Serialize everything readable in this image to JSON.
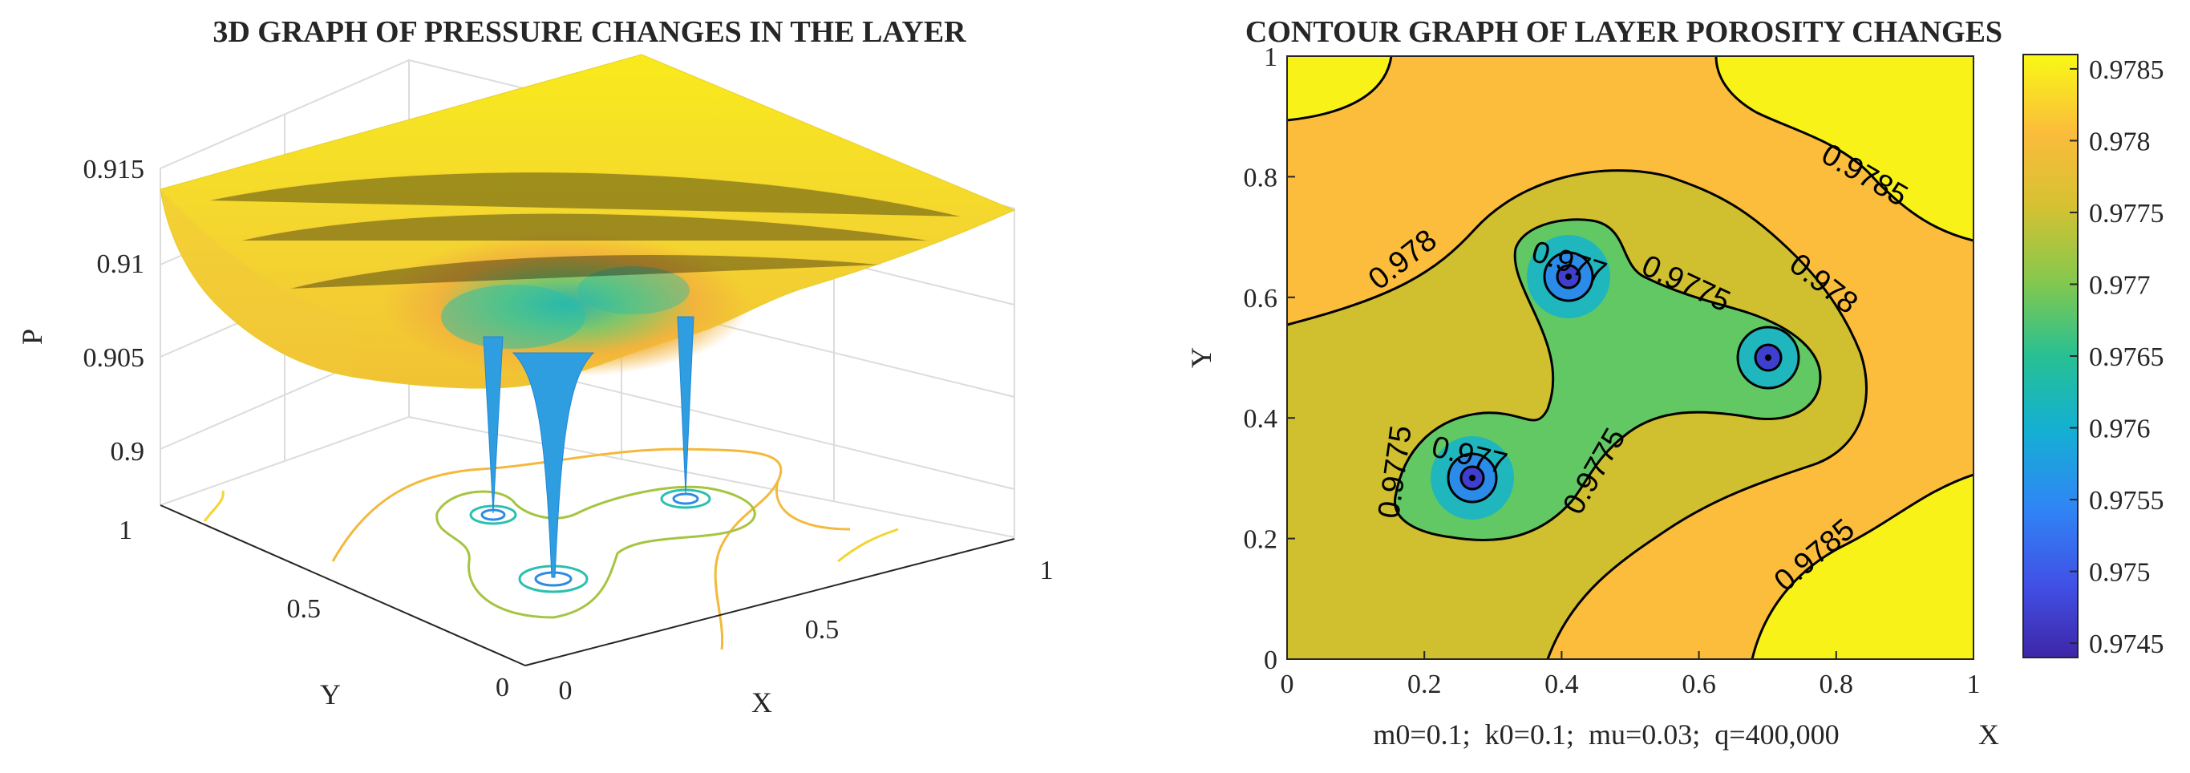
{
  "chart_data": [
    {
      "type": "surface",
      "title": "3D GRAPH OF PRESSURE CHANGES IN THE LAYER",
      "zlabel": "P",
      "xlabel": "X",
      "ylabel": "Y",
      "zticks": [
        "0.915",
        "0.91",
        "0.905",
        "0.9"
      ],
      "xticks": [
        "0",
        "0.5",
        "1"
      ],
      "yticks": [
        "1",
        "0.5",
        "0"
      ],
      "xlim": [
        0,
        1
      ],
      "ylim": [
        0,
        1
      ],
      "zlim": [
        0.9,
        0.915
      ],
      "wells": [
        {
          "x": 0.27,
          "y": 0.3
        },
        {
          "x": 0.41,
          "y": 0.63
        },
        {
          "x": 0.7,
          "y": 0.5
        }
      ],
      "colors": {
        "high": "#f5e61f",
        "mid": "#f7b338",
        "low": "#20b2c8",
        "well": "#2d8be0"
      }
    },
    {
      "type": "contour",
      "title": "CONTOUR GRAPH OF LAYER POROSITY CHANGES",
      "xlabel": "X",
      "ylabel": "Y",
      "xticks": [
        "0",
        "0.2",
        "0.4",
        "0.6",
        "0.8",
        "1"
      ],
      "yticks": [
        "0",
        "0.2",
        "0.4",
        "0.6",
        "0.8",
        "1"
      ],
      "xlim": [
        0,
        1
      ],
      "ylim": [
        0,
        1
      ],
      "wells": [
        {
          "x": 0.27,
          "y": 0.3
        },
        {
          "x": 0.41,
          "y": 0.635
        },
        {
          "x": 0.7,
          "y": 0.5
        }
      ],
      "contour_labels": [
        {
          "text": "0.978",
          "x": 0.17,
          "y": 0.66,
          "angle": -38
        },
        {
          "text": "0.977",
          "x": 0.41,
          "y": 0.655,
          "angle": 18
        },
        {
          "text": "0.9775",
          "x": 0.58,
          "y": 0.62,
          "angle": 25
        },
        {
          "text": "0.978",
          "x": 0.78,
          "y": 0.62,
          "angle": 38
        },
        {
          "text": "0.9785",
          "x": 0.84,
          "y": 0.8,
          "angle": 30
        },
        {
          "text": "0.9775",
          "x": 0.16,
          "y": 0.31,
          "angle": -82
        },
        {
          "text": "0.977",
          "x": 0.265,
          "y": 0.335,
          "angle": 14
        },
        {
          "text": "0.9775",
          "x": 0.45,
          "y": 0.31,
          "angle": -60
        },
        {
          "text": "0.9785",
          "x": 0.77,
          "y": 0.17,
          "angle": -40
        }
      ],
      "colorbar": {
        "ticks": [
          "0.9785",
          "0.978",
          "0.9775",
          "0.977",
          "0.9765",
          "0.976",
          "0.9755",
          "0.975",
          "0.9745"
        ],
        "range": [
          0.9744,
          0.9786
        ]
      },
      "footer": "m0=0.1;  k0=0.1;  mu=0.03;  q=400,000"
    }
  ]
}
